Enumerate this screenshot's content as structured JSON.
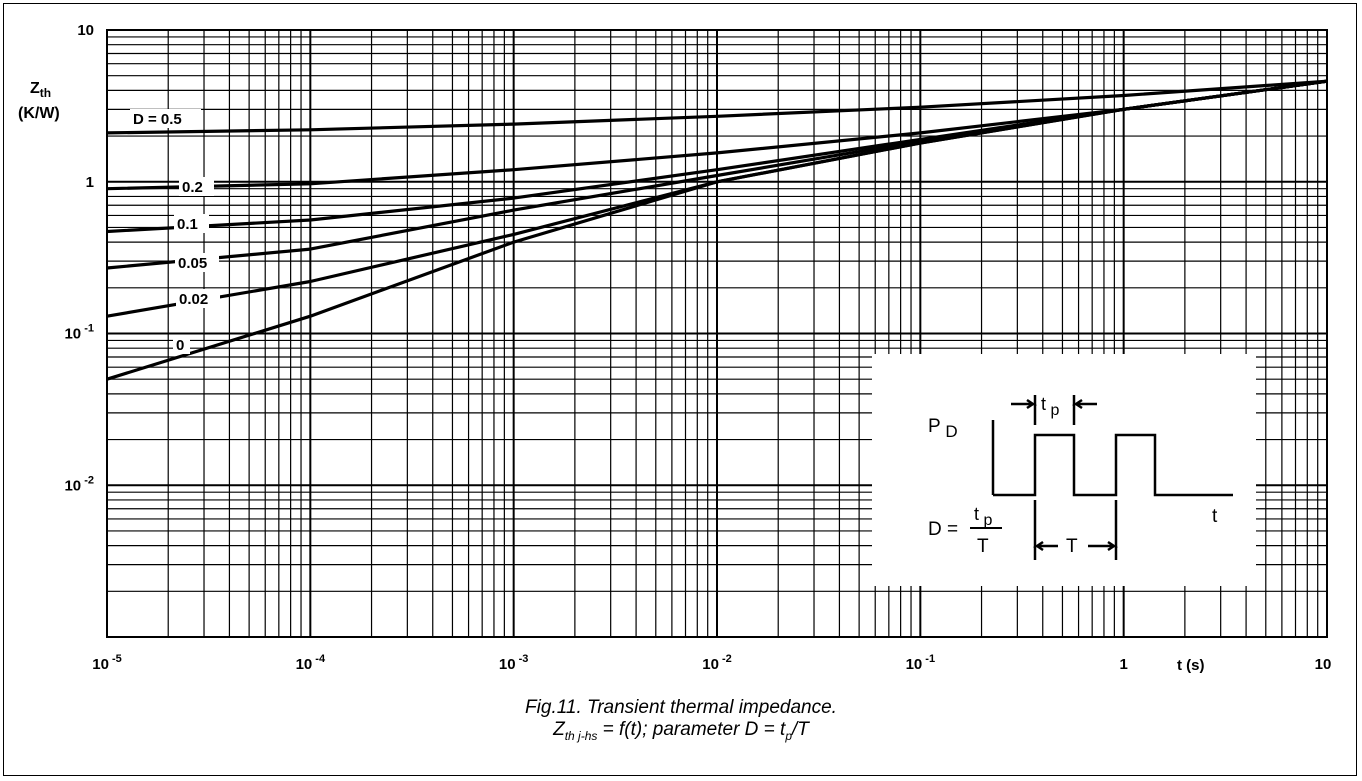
{
  "chart_data": {
    "type": "line",
    "scale": {
      "x": "log",
      "y": "log"
    },
    "xlim": [
      1e-05,
      10
    ],
    "ylim": [
      0.001,
      10
    ],
    "grid": true,
    "x_ticks": [
      {
        "base": "10",
        "exp": "-5"
      },
      {
        "base": "10",
        "exp": "-4"
      },
      {
        "base": "10",
        "exp": "-3"
      },
      {
        "base": "10",
        "exp": "-2"
      },
      {
        "base": "10",
        "exp": "-1"
      },
      {
        "base": "1",
        "exp": ""
      },
      {
        "base": "10",
        "exp": ""
      }
    ],
    "y_ticks": [
      {
        "base": "10",
        "exp": ""
      },
      {
        "base": "1",
        "exp": ""
      },
      {
        "base": "10",
        "exp": "-1"
      },
      {
        "base": "10",
        "exp": "-2"
      }
    ],
    "ylabel": "Z",
    "ylabel_sub": "th",
    "ylabel_unit": "(K/W)",
    "xlabel": "t (s)",
    "series": [
      {
        "name": "D = 0.5",
        "x": [
          1e-05,
          0.0001,
          0.001,
          0.01,
          0.1,
          1,
          10
        ],
        "y": [
          2.1,
          2.2,
          2.4,
          2.7,
          3.1,
          3.7,
          4.6
        ]
      },
      {
        "name": "0.2",
        "x": [
          1e-05,
          0.0001,
          0.001,
          0.01,
          0.1,
          1,
          10
        ],
        "y": [
          0.9,
          0.97,
          1.2,
          1.55,
          2.1,
          3.0,
          4.6
        ]
      },
      {
        "name": "0.1",
        "x": [
          1e-05,
          0.0001,
          0.001,
          0.01,
          0.1,
          1,
          10
        ],
        "y": [
          0.47,
          0.56,
          0.78,
          1.2,
          1.9,
          3.0,
          4.6
        ]
      },
      {
        "name": "0.05",
        "x": [
          1e-05,
          0.0001,
          0.001,
          0.01,
          0.1,
          1,
          10
        ],
        "y": [
          0.27,
          0.36,
          0.65,
          1.1,
          1.85,
          3.0,
          4.6
        ]
      },
      {
        "name": "0.02",
        "x": [
          1e-05,
          0.0001,
          0.001,
          0.01,
          0.1,
          1,
          10
        ],
        "y": [
          0.13,
          0.22,
          0.45,
          1.0,
          1.8,
          3.0,
          4.6
        ]
      },
      {
        "name": "0",
        "x": [
          1e-05,
          0.0001,
          0.001,
          0.01,
          0.1,
          1,
          10
        ],
        "y": [
          0.05,
          0.13,
          0.4,
          1.0,
          1.8,
          3.0,
          4.6
        ]
      }
    ],
    "inset": {
      "pd_label": "P",
      "pd_sub": "D",
      "tp_label": "t",
      "tp_sub": "p",
      "t_label": "t",
      "T_label": "T",
      "d_label": "D =",
      "d_num": "t",
      "d_num_sub": "p",
      "d_den": "T"
    }
  },
  "caption": {
    "line1": "Fig.11.   Transient thermal impedance.",
    "z": "Z",
    "z_sub": "th j-hs",
    "rest": " = f(t); parameter D = t",
    "tp_sub": "p",
    "tail": "/T"
  }
}
